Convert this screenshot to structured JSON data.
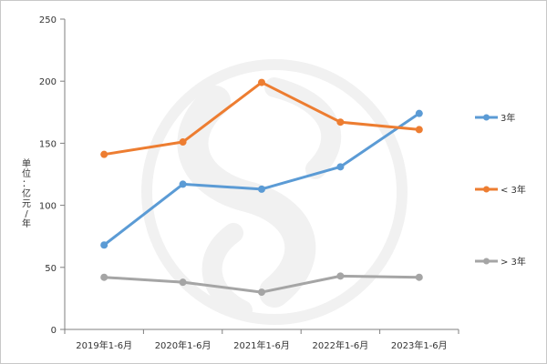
{
  "chart_data": {
    "type": "line",
    "title": "",
    "xlabel": "",
    "ylabel": "单位：亿元/年",
    "categories": [
      "2019年1-6月",
      "2020年1-6月",
      "2021年1-6月",
      "2022年1-6月",
      "2023年1-6月"
    ],
    "ylim": [
      0,
      250
    ],
    "yticks": [
      0,
      50,
      100,
      150,
      200,
      250
    ],
    "grid": false,
    "legend_position": "right",
    "series": [
      {
        "name": "3年",
        "color": "#5b9bd5",
        "values": [
          68,
          117,
          113,
          131,
          174
        ]
      },
      {
        "name": "< 3年",
        "color": "#ed7d31",
        "values": [
          141,
          151,
          199,
          167,
          161
        ]
      },
      {
        "name": "> 3年",
        "color": "#a5a5a5",
        "values": [
          42,
          38,
          30,
          43,
          42
        ]
      }
    ]
  }
}
